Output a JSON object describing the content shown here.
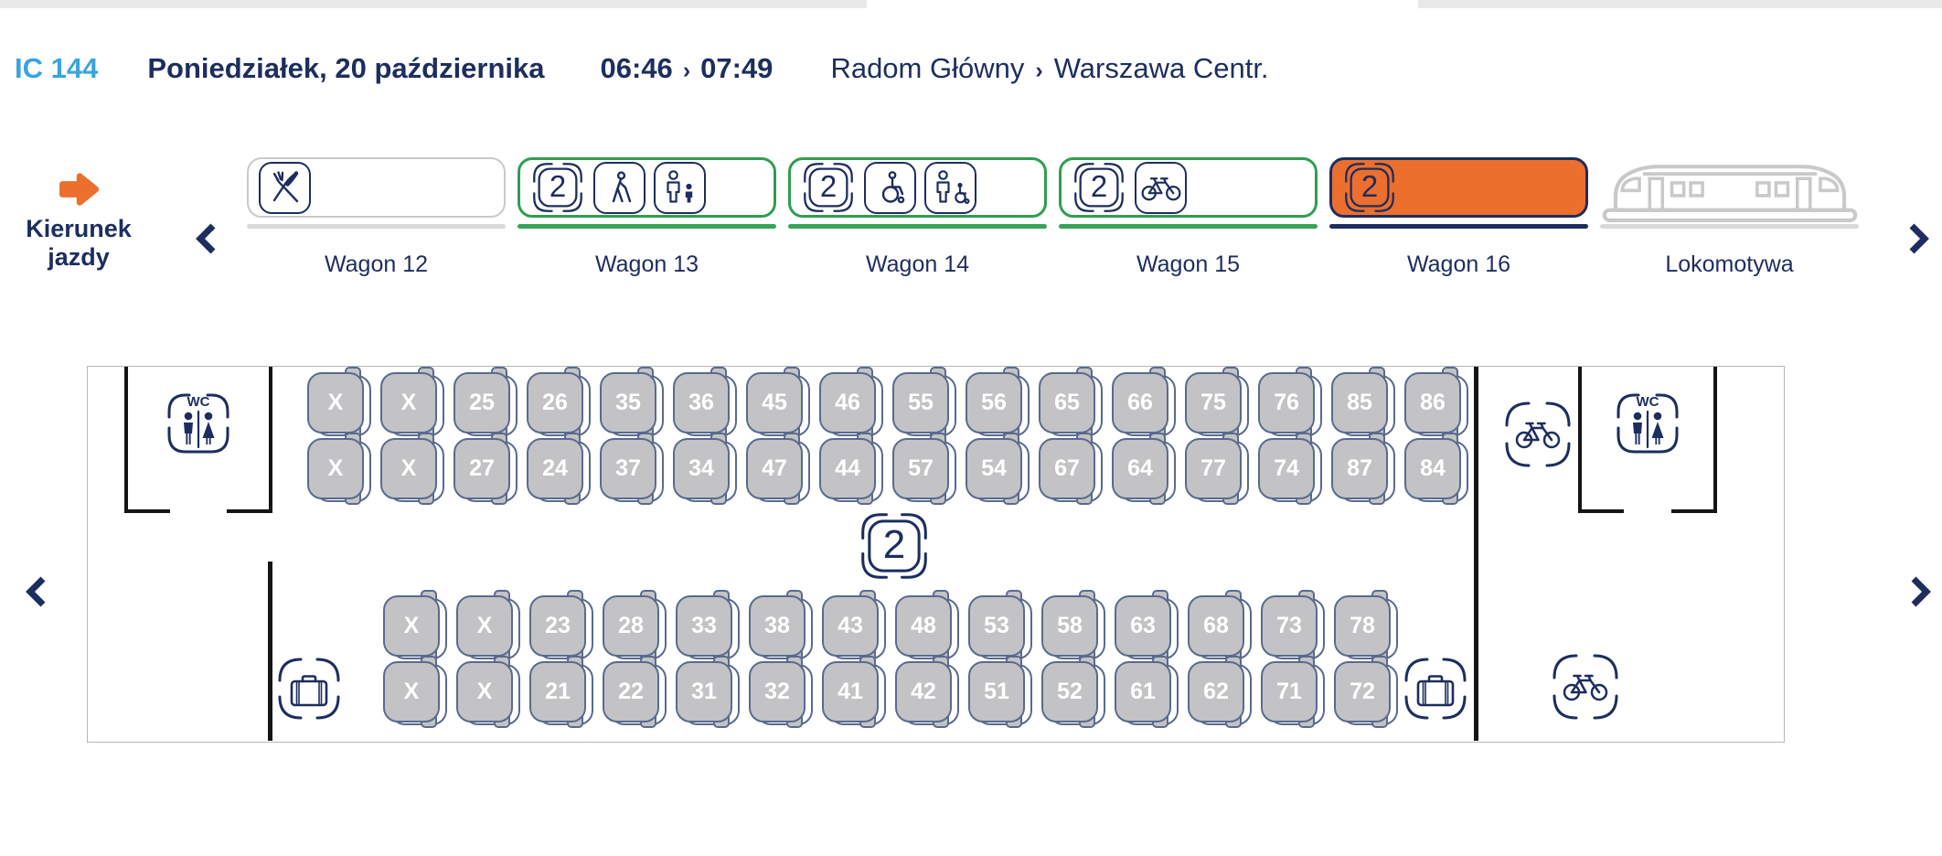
{
  "header": {
    "train_id": "IC 144",
    "date": "Poniedziałek, 20 października",
    "departure_time": "06:46",
    "time_separator": "›",
    "arrival_time": "07:49",
    "origin": "Radom Główny",
    "route_separator": "›",
    "destination": "Warszawa Centr."
  },
  "direction": {
    "line1": "Kierunek",
    "line2": "jazdy"
  },
  "carousel": {
    "prev_label": "‹",
    "next_label": "›"
  },
  "wagons": [
    {
      "label": "Wagon 12",
      "state": "restaurant",
      "icons": [
        "restaurant-icon"
      ]
    },
    {
      "label": "Wagon 13",
      "state": "available",
      "class_label": "2",
      "icons": [
        "class-2-icon",
        "blind-passenger-icon",
        "adult-with-child-icon"
      ]
    },
    {
      "label": "Wagon 14",
      "state": "available",
      "class_label": "2",
      "icons": [
        "class-2-icon",
        "wheelchair-icon",
        "attendant-with-wheelchair-icon"
      ]
    },
    {
      "label": "Wagon 15",
      "state": "available",
      "class_label": "2",
      "icons": [
        "class-2-icon",
        "bicycle-icon"
      ]
    },
    {
      "label": "Wagon 16",
      "state": "selected",
      "class_label": "2",
      "icons": [
        "class-2-icon"
      ]
    },
    {
      "label": "Lokomotywa",
      "state": "locomotive",
      "icons": [
        "locomotive-icon"
      ]
    }
  ],
  "seatmap": {
    "class_badge": "2",
    "wc_label": "WC",
    "occupied_marker": "X",
    "rows": {
      "upper_window": [
        "X",
        "X",
        "25",
        "26",
        "35",
        "36",
        "45",
        "46",
        "55",
        "56",
        "65",
        "66",
        "75",
        "76",
        "85",
        "86"
      ],
      "upper_aisle": [
        "X",
        "X",
        "27",
        "24",
        "37",
        "34",
        "47",
        "44",
        "57",
        "54",
        "67",
        "64",
        "77",
        "74",
        "87",
        "84"
      ],
      "lower_aisle": [
        "X",
        "X",
        "23",
        "28",
        "33",
        "38",
        "43",
        "48",
        "53",
        "58",
        "63",
        "68",
        "73",
        "78"
      ],
      "lower_window": [
        "X",
        "X",
        "21",
        "22",
        "31",
        "32",
        "41",
        "42",
        "51",
        "52",
        "61",
        "62",
        "71",
        "72"
      ]
    },
    "prev_label": "‹",
    "next_label": "›"
  },
  "colors": {
    "navy": "#1D2D5E",
    "light_blue": "#3AA3DC",
    "orange": "#ED6F2E",
    "green": "#2F9E4F",
    "seat_fill": "#C3C3C5",
    "seat_border": "#5A6A8E",
    "frame_gray": "#C9C9C9",
    "wall_black": "#151515",
    "locomotive_gray": "#C9C9C9"
  }
}
